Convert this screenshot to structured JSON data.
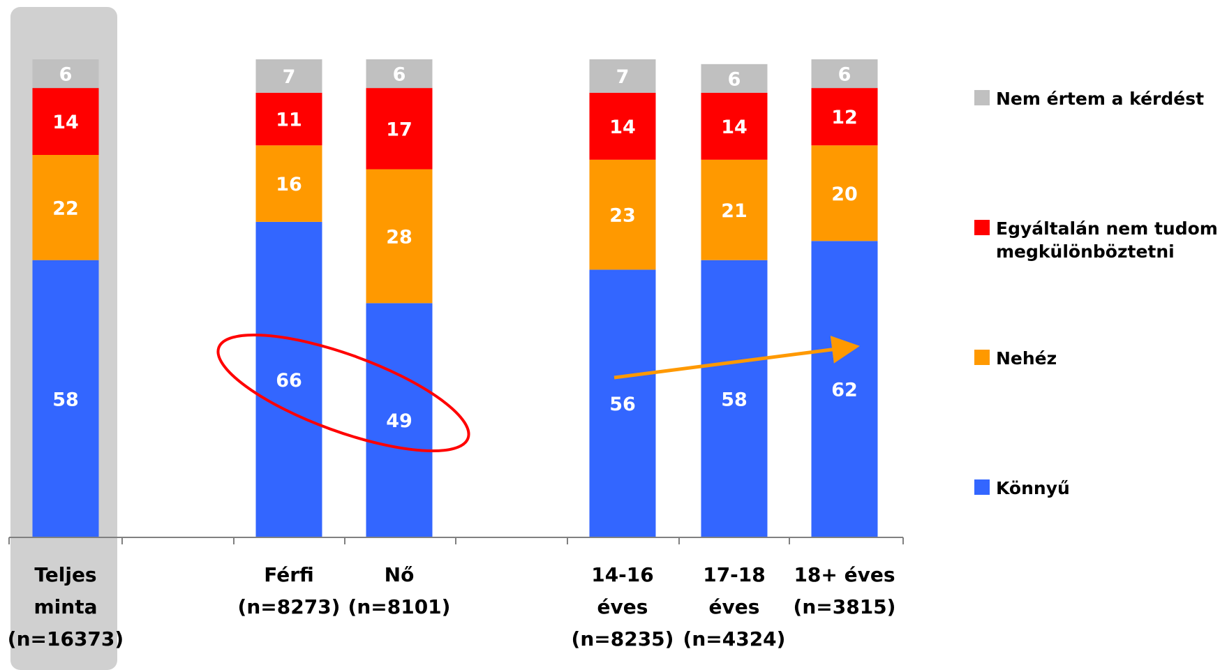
{
  "chart_data": {
    "type": "bar",
    "stacked": true,
    "orientation": "vertical",
    "categories": [
      [
        "Teljes",
        "minta",
        "(n=16373)"
      ],
      [
        "Férfi",
        "(n=8273)"
      ],
      [
        "Nő",
        "(n=8101)"
      ],
      [
        "14-16",
        "éves",
        "(n=8235)"
      ],
      [
        "17-18",
        "éves",
        "(n=4324)"
      ],
      [
        "18+ éves",
        "(n=3815)"
      ]
    ],
    "series": [
      {
        "name": "Könnyű",
        "color": "#3366ff",
        "values": [
          58,
          66,
          49,
          56,
          58,
          62
        ]
      },
      {
        "name": "Nehéz",
        "color": "#ff9900",
        "values": [
          22,
          16,
          28,
          23,
          21,
          20
        ]
      },
      {
        "name": "Egyáltalán nem tudom megkülönböztetni",
        "color": "#ff0000",
        "values": [
          14,
          11,
          17,
          14,
          14,
          12
        ]
      },
      {
        "name": "Nem értem a kérdést",
        "color": "#c0c0c0",
        "values": [
          6,
          7,
          6,
          7,
          6,
          6
        ]
      }
    ],
    "legend": {
      "placement": "right",
      "order": [
        "Nem értem a kérdést",
        "Egyáltalán nem tudom megkülönböztetni",
        "Nehéz",
        "Könnyű"
      ],
      "lines": [
        [
          "Nem értem a kérdést"
        ],
        [
          "Egyáltalán nem tudom",
          "megkülönböztetni"
        ],
        [
          "Nehéz"
        ],
        [
          "Könnyű"
        ]
      ]
    },
    "ylim": [
      0,
      100
    ],
    "grid": false,
    "highlight": {
      "category": [
        "Teljes",
        "minta",
        "(n=16373)"
      ],
      "color": "#d0d0d0"
    },
    "annotations": [
      {
        "type": "ellipse",
        "color": "#ff0000",
        "around": [
          "Férfi",
          "Nő"
        ],
        "series": "Könnyű"
      },
      {
        "type": "arrow",
        "color": "#ff9900",
        "from": "14-16",
        "to": "18+ éves",
        "series": "Könnyű",
        "direction": "increasing"
      }
    ]
  }
}
